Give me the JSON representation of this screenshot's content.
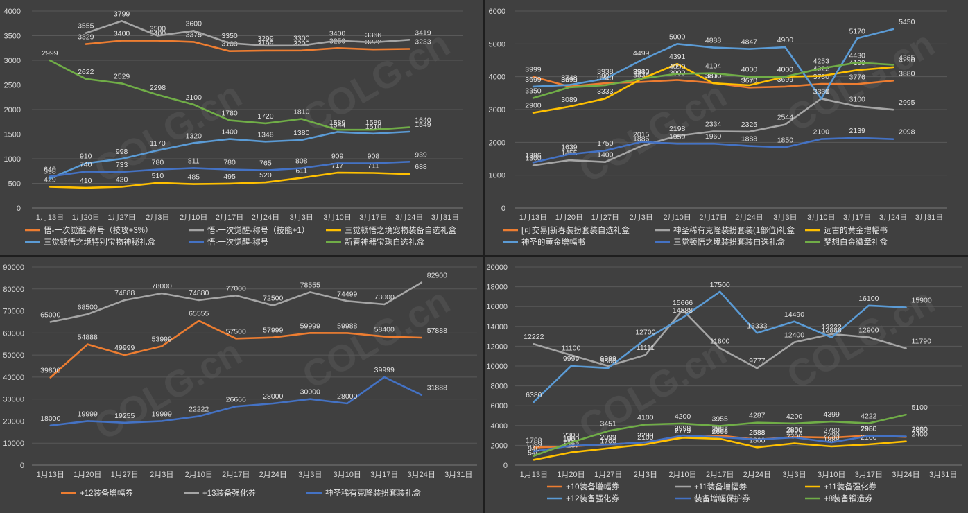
{
  "chart_data": [
    {
      "type": "line",
      "categories": [
        "1月13日",
        "1月20日",
        "1月27日",
        "2月3日",
        "2月10日",
        "2月17日",
        "2月24日",
        "3月3日",
        "3月10日",
        "3月17日",
        "3月24日",
        "3月31日"
      ],
      "ylim": [
        0,
        4000
      ],
      "ytick_step": 500,
      "grid": true,
      "legend": "bottom",
      "series": [
        {
          "name": "悟-一次觉醒-称号（技攻+3%）",
          "color": "#ed7d31",
          "values": [
            null,
            3329,
            3400,
            3400,
            3375,
            3188,
            3199,
            3200,
            3250,
            3222,
            3233,
            null
          ]
        },
        {
          "name": "悟-一次觉醒-称号（技能+1）",
          "color": "#a5a5a5",
          "values": [
            null,
            3555,
            3799,
            3500,
            3600,
            3350,
            3299,
            3300,
            3400,
            3366,
            3419,
            null
          ]
        },
        {
          "name": "三觉顿悟之境宠物装备自选礼盒",
          "color": "#ffc000",
          "values": [
            429,
            410,
            430,
            510,
            485,
            495,
            520,
            611,
            717,
            711,
            688,
            null
          ]
        },
        {
          "name": "三觉顿悟之境特别宝物神秘礼盒",
          "color": "#5b9bd5",
          "values": [
            598,
            910,
            998,
            1170,
            1320,
            1400,
            1348,
            1380,
            1544,
            1510,
            1549,
            null
          ]
        },
        {
          "name": "悟-一次觉醒-称号",
          "color": "#4472c4",
          "values": [
            640,
            740,
            733,
            780,
            811,
            780,
            765,
            808,
            909,
            908,
            939,
            null
          ]
        },
        {
          "name": "新春神器宝珠自选礼盒",
          "color": "#70ad47",
          "values": [
            2999,
            2622,
            2529,
            2298,
            2100,
            1780,
            1720,
            1810,
            1589,
            1589,
            1640,
            null
          ]
        }
      ]
    },
    {
      "type": "line",
      "categories": [
        "1月13日",
        "1月20日",
        "1月27日",
        "2月3日",
        "2月10日",
        "2月17日",
        "2月24日",
        "3月3日",
        "3月10日",
        "3月17日",
        "3月24日",
        "3月31日"
      ],
      "ylim": [
        0,
        6000
      ],
      "ytick_step": 1000,
      "grid": true,
      "legend": "bottom",
      "series": [
        {
          "name": "[可交易]新春装扮套装自选礼盒",
          "color": "#ed7d31",
          "values": [
            3999,
            3699,
            3800,
            3838,
            3900,
            3810,
            3670,
            3699,
            3780,
            3776,
            3880,
            null
          ]
        },
        {
          "name": "神圣稀有克隆装扮套装(1部位)礼盒",
          "color": "#a5a5a5",
          "values": [
            1300,
            1455,
            1400,
            1886,
            2198,
            2334,
            2325,
            2544,
            3331,
            3100,
            2995,
            null
          ]
        },
        {
          "name": "远古的黄金增幅书",
          "color": "#ffc000",
          "values": [
            2900,
            3089,
            3333,
            3930,
            4391,
            3800,
            3740,
            4000,
            4022,
            4199,
            4290,
            null
          ]
        },
        {
          "name": "神圣的黄金增幅书",
          "color": "#5b9bd5",
          "values": [
            3699,
            3748,
            3938,
            4499,
            5000,
            4888,
            4847,
            4900,
            3330,
            5170,
            5450,
            null
          ]
        },
        {
          "name": "三觉顿悟之境装扮套装自选礼盒",
          "color": "#4472c4",
          "values": [
            1386,
            1639,
            1750,
            2015,
            1959,
            1960,
            1888,
            1850,
            2100,
            2139,
            2098,
            null
          ]
        },
        {
          "name": "梦想白金徽章礼盒",
          "color": "#70ad47",
          "values": [
            3350,
            3675,
            3740,
            3940,
            4090,
            4104,
            4000,
            4000,
            4253,
            4430,
            4365,
            null
          ]
        }
      ]
    },
    {
      "type": "line",
      "categories": [
        "1月13日",
        "1月20日",
        "1月27日",
        "2月3日",
        "2月10日",
        "2月17日",
        "2月24日",
        "3月3日",
        "3月10日",
        "3月17日",
        "3月24日",
        "3月31日"
      ],
      "ylim": [
        0,
        90000
      ],
      "ytick_step": 10000,
      "grid": true,
      "legend": "bottom",
      "series": [
        {
          "name": "+12装备增幅券",
          "color": "#ed7d31",
          "values": [
            39800,
            54888,
            49999,
            53999,
            65555,
            57500,
            57999,
            59999,
            59988,
            58400,
            57888,
            null
          ]
        },
        {
          "name": "+13装备强化券",
          "color": "#a5a5a5",
          "values": [
            65000,
            68500,
            74888,
            78000,
            74880,
            77000,
            72500,
            78555,
            74499,
            73000,
            82900,
            null
          ]
        },
        {
          "name": "神圣稀有克隆装扮套装礼盒",
          "color": "#4472c4",
          "values": [
            18000,
            19999,
            19255,
            19999,
            22222,
            26666,
            28000,
            30000,
            28000,
            39999,
            31888,
            null
          ]
        }
      ]
    },
    {
      "type": "line",
      "categories": [
        "1月13日",
        "1月20日",
        "1月27日",
        "2月3日",
        "2月10日",
        "2月17日",
        "2月24日",
        "3月3日",
        "3月10日",
        "3月17日",
        "3月24日",
        "3月31日"
      ],
      "ylim": [
        0,
        20000
      ],
      "ytick_step": 2000,
      "grid": true,
      "legend": "bottom",
      "series": [
        {
          "name": "+10装备增幅券",
          "color": "#ed7d31",
          "values": [
            1788,
            1900,
            2099,
            2299,
            2779,
            2987,
            2588,
            2850,
            2780,
            2985,
            2850,
            null
          ]
        },
        {
          "name": "+11装备增幅券",
          "color": "#a5a5a5",
          "values": [
            12222,
            11100,
            9999,
            11111,
            15666,
            11800,
            9777,
            12400,
            13222,
            12900,
            11790,
            null
          ]
        },
        {
          "name": "+11装备强化券",
          "color": "#ffc000",
          "values": [
            540,
            1287,
            1700,
            2100,
            2779,
            2666,
            1800,
            2200,
            1888,
            2100,
            2400,
            null
          ]
        },
        {
          "name": "+12装备强化券",
          "color": "#5b9bd5",
          "values": [
            6380,
            9999,
            9800,
            12700,
            14888,
            17500,
            13333,
            14490,
            12888,
            16100,
            15900,
            null
          ]
        },
        {
          "name": "装备增幅保护券",
          "color": "#4472c4",
          "values": [
            1399,
            1960,
            2099,
            2299,
            2999,
            2833,
            2588,
            2800,
            2299,
            2950,
            2900,
            null
          ]
        },
        {
          "name": "+8装备锻造券",
          "color": "#70ad47",
          "values": [
            940,
            2300,
            3451,
            4100,
            4200,
            3955,
            4287,
            4200,
            4399,
            4222,
            5100,
            null
          ]
        }
      ]
    }
  ],
  "watermark": "COLG.cn"
}
